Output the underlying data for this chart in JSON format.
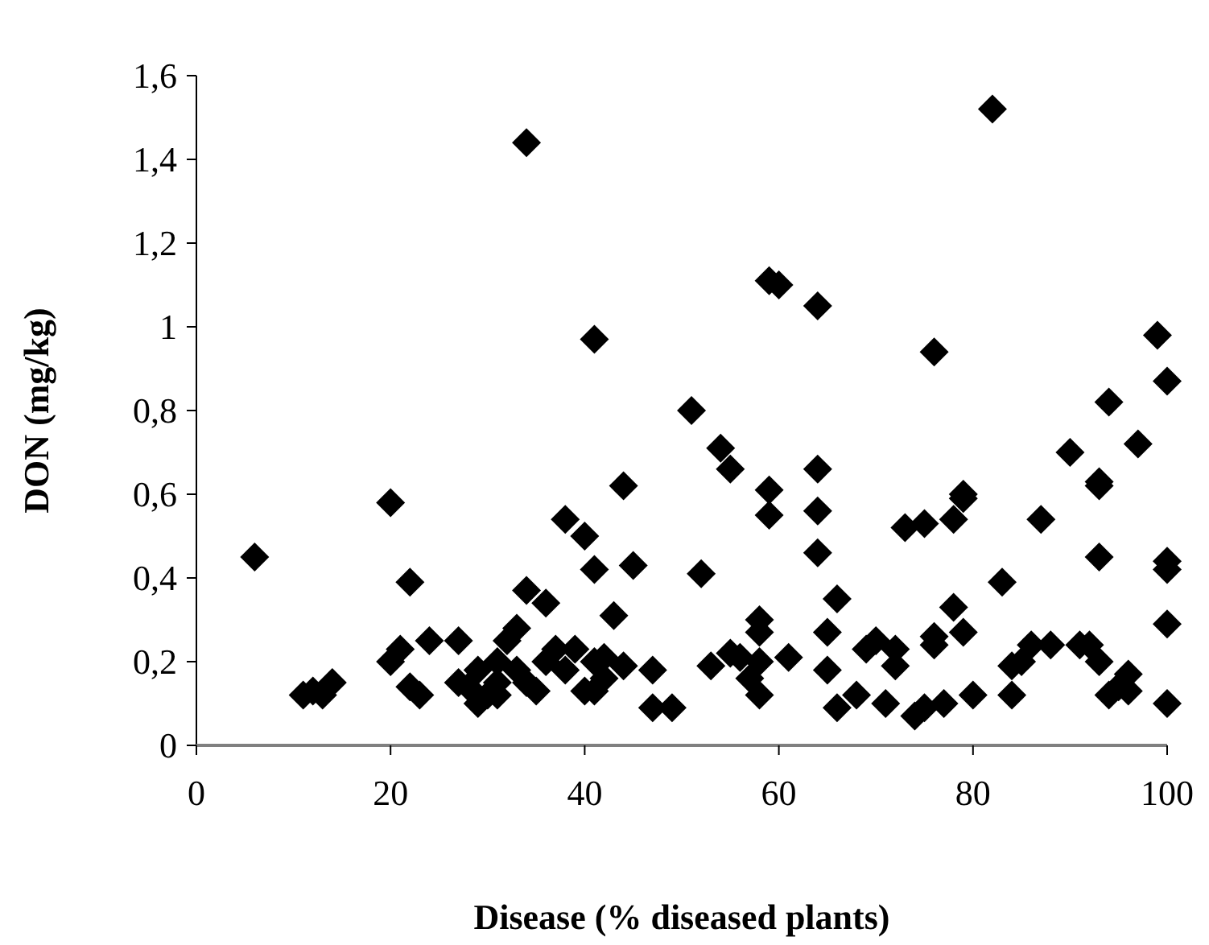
{
  "chart_data": {
    "type": "scatter",
    "xlabel": "Disease (% diseased plants)",
    "ylabel": "DON (mg/kg)",
    "xlim": [
      0,
      100
    ],
    "xticks": [
      0,
      20,
      40,
      60,
      80,
      100
    ],
    "ylim": [
      0,
      1.6
    ],
    "yticks": [
      0,
      {
        "value": 0.2,
        "label": "0,2"
      },
      {
        "value": 0.4,
        "label": "0,4"
      },
      {
        "value": 0.6,
        "label": "0,6"
      },
      {
        "value": 0.8,
        "label": "0,8"
      },
      1,
      {
        "value": 1.2,
        "label": "1,2"
      },
      {
        "value": 1.4,
        "label": "1,4"
      },
      {
        "value": 1.6,
        "label": "1,6"
      }
    ],
    "marker": "diamond",
    "series": [
      {
        "color": "#000000",
        "x": [
          6,
          11,
          12,
          13,
          14,
          20,
          20,
          21,
          22,
          22,
          23,
          24,
          27,
          27,
          28,
          29,
          29,
          30,
          31,
          31,
          31,
          32,
          33,
          33,
          34,
          34,
          34,
          35,
          36,
          36,
          37,
          38,
          38,
          39,
          40,
          40,
          41,
          41,
          41,
          41,
          42,
          42,
          43,
          44,
          44,
          45,
          47,
          47,
          49,
          51,
          52,
          53,
          54,
          55,
          55,
          56,
          57,
          58,
          58,
          58,
          58,
          59,
          59,
          59,
          60,
          61,
          64,
          64,
          64,
          64,
          65,
          65,
          66,
          66,
          68,
          69,
          70,
          71,
          72,
          72,
          73,
          74,
          75,
          75,
          76,
          76,
          76,
          77,
          78,
          78,
          79,
          79,
          79,
          80,
          82,
          83,
          84,
          84,
          85,
          86,
          87,
          88,
          90,
          91,
          92,
          93,
          93,
          93,
          93,
          94,
          94,
          95,
          96,
          96,
          97,
          99,
          100,
          100,
          100,
          100,
          100
        ],
        "values": [
          0.45,
          0.12,
          0.13,
          0.12,
          0.15,
          0.58,
          0.2,
          0.23,
          0.39,
          0.14,
          0.12,
          0.25,
          0.25,
          0.15,
          0.14,
          0.1,
          0.18,
          0.12,
          0.2,
          0.15,
          0.12,
          0.25,
          0.28,
          0.18,
          1.44,
          0.37,
          0.15,
          0.13,
          0.34,
          0.2,
          0.23,
          0.18,
          0.54,
          0.23,
          0.13,
          0.5,
          0.97,
          0.42,
          0.2,
          0.13,
          0.16,
          0.21,
          0.31,
          0.62,
          0.19,
          0.43,
          0.18,
          0.09,
          0.09,
          0.8,
          0.41,
          0.19,
          0.71,
          0.66,
          0.22,
          0.21,
          0.16,
          0.3,
          0.27,
          0.2,
          0.12,
          1.11,
          0.61,
          0.55,
          1.1,
          0.21,
          1.05,
          0.66,
          0.56,
          0.46,
          0.27,
          0.18,
          0.35,
          0.09,
          0.12,
          0.23,
          0.25,
          0.1,
          0.19,
          0.23,
          0.52,
          0.07,
          0.53,
          0.09,
          0.94,
          0.24,
          0.26,
          0.1,
          0.54,
          0.33,
          0.59,
          0.6,
          0.27,
          0.12,
          1.52,
          0.39,
          0.19,
          0.12,
          0.2,
          0.24,
          0.54,
          0.24,
          0.7,
          0.24,
          0.24,
          0.62,
          0.63,
          0.45,
          0.2,
          0.82,
          0.12,
          0.14,
          0.17,
          0.13,
          0.72,
          0.98,
          0.87,
          0.44,
          0.42,
          0.29,
          0.1
        ]
      }
    ]
  }
}
